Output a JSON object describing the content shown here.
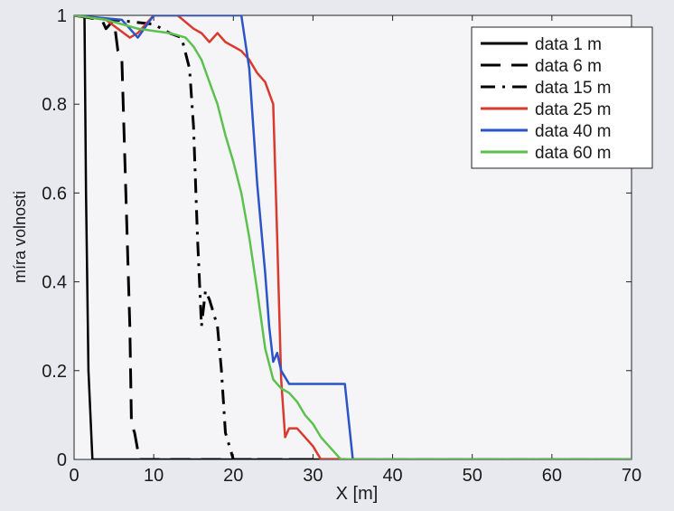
{
  "chart_data": {
    "type": "line",
    "title": "",
    "xlabel": "X [m]",
    "ylabel": "míra volnosti",
    "xlim": [
      0,
      70
    ],
    "ylim": [
      0,
      1
    ],
    "xticks": [
      0,
      10,
      20,
      30,
      40,
      50,
      60,
      70
    ],
    "xtick_labels": [
      "0",
      "10",
      "20",
      "30",
      "40",
      "50",
      "60",
      "70"
    ],
    "yticks": [
      0,
      0.2,
      0.4,
      0.6,
      0.8,
      1
    ],
    "ytick_labels": [
      "0",
      "0.2",
      "0.4",
      "0.6",
      "0.8",
      "1"
    ],
    "grid": false,
    "legend_position": "top-right",
    "series": [
      {
        "name": "data  1 m",
        "color": "#000000",
        "style": "solid",
        "x": [
          0,
          1.3,
          1.5,
          1.8,
          2.3,
          4,
          70
        ],
        "y": [
          1,
          1,
          0.6,
          0.2,
          0,
          0,
          0
        ]
      },
      {
        "name": "data  6 m",
        "color": "#000000",
        "style": "dashed",
        "x": [
          0,
          3.5,
          4,
          5,
          5.5,
          6,
          6.5,
          7,
          7.2,
          7.6,
          8.2,
          9,
          70
        ],
        "y": [
          1,
          0.99,
          0.97,
          0.99,
          0.92,
          0.9,
          0.6,
          0.3,
          0.08,
          0.06,
          0.0,
          0,
          0
        ]
      },
      {
        "name": "data 15 m",
        "color": "#000000",
        "style": "dashdot",
        "x": [
          0,
          10,
          12,
          13.5,
          14.5,
          15,
          15.5,
          16,
          16.5,
          17,
          18,
          18.5,
          19,
          20,
          70
        ],
        "y": [
          1,
          0.98,
          0.96,
          0.95,
          0.88,
          0.75,
          0.5,
          0.3,
          0.38,
          0.36,
          0.3,
          0.2,
          0.06,
          0,
          0
        ]
      },
      {
        "name": "data 25 m",
        "color": "#d93a2e",
        "style": "solid",
        "x": [
          0,
          4,
          7,
          8,
          9,
          10,
          11,
          13,
          15,
          16,
          17,
          18,
          19,
          20,
          21,
          22,
          23,
          24,
          25,
          25.5,
          26,
          26.5,
          27,
          28,
          30,
          31,
          70
        ],
        "y": [
          1,
          0.99,
          0.95,
          0.96,
          0.98,
          1,
          1,
          1,
          0.97,
          0.96,
          0.94,
          0.96,
          0.94,
          0.93,
          0.92,
          0.9,
          0.87,
          0.85,
          0.8,
          0.5,
          0.18,
          0.05,
          0.07,
          0.07,
          0.03,
          0,
          0
        ]
      },
      {
        "name": "data 40 m",
        "color": "#2a54c8",
        "style": "solid",
        "x": [
          0,
          6,
          8,
          10,
          21,
          22,
          22.5,
          23,
          23.5,
          24,
          24.5,
          25,
          25.5,
          26,
          27,
          34,
          35,
          70
        ],
        "y": [
          1,
          0.99,
          0.95,
          1,
          1,
          0.88,
          0.75,
          0.62,
          0.52,
          0.42,
          0.3,
          0.22,
          0.24,
          0.2,
          0.17,
          0.17,
          0,
          0
        ]
      },
      {
        "name": "data 60 m",
        "color": "#5cc14e",
        "style": "solid",
        "x": [
          0,
          4,
          8,
          12,
          14,
          15,
          16,
          17,
          18,
          19,
          20,
          21,
          22,
          23,
          24,
          25,
          26,
          27,
          28,
          29,
          30,
          31,
          32,
          33,
          33.5,
          40,
          63,
          70
        ],
        "y": [
          1,
          0.99,
          0.97,
          0.96,
          0.95,
          0.93,
          0.9,
          0.85,
          0.8,
          0.73,
          0.67,
          0.6,
          0.5,
          0.38,
          0.25,
          0.18,
          0.16,
          0.15,
          0.13,
          0.1,
          0.08,
          0.05,
          0.03,
          0.01,
          0,
          0,
          0,
          0
        ]
      }
    ]
  }
}
